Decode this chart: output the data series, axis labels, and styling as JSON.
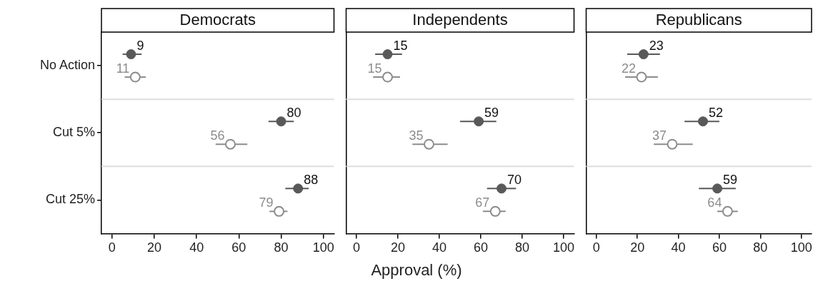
{
  "chart_data": [
    {
      "type": "scatter",
      "title": "Democrats",
      "orientation": "horizontal",
      "categories": [
        "No Action",
        "Cut 5%",
        "Cut 25%"
      ],
      "xlim": [
        -5,
        105
      ],
      "xticks": [
        0,
        20,
        40,
        60,
        80,
        100
      ],
      "grid": "y",
      "marker": "circle",
      "data_labels": true,
      "legend": false,
      "series": [
        {
          "color": "#595959",
          "values": [
            9,
            80,
            88
          ],
          "errors": [
            [
              5,
              14
            ],
            [
              74,
              86
            ],
            [
              82,
              93
            ]
          ]
        },
        {
          "color": "#8c8c8c",
          "values": [
            11,
            56,
            79
          ],
          "errors": [
            [
              6,
              16
            ],
            [
              49,
              64
            ],
            [
              74.5,
              83
            ]
          ]
        }
      ]
    },
    {
      "type": "scatter",
      "title": "Independents",
      "xlabel": "Approval (%)",
      "orientation": "horizontal",
      "xlim": [
        -5,
        105
      ],
      "xticks": [
        0,
        20,
        40,
        60,
        80,
        100
      ],
      "grid": "y",
      "marker": "circle",
      "data_labels": true,
      "legend": false,
      "tick_labels": "x",
      "series": [
        {
          "color": "#595959",
          "values": [
            15,
            59,
            70
          ],
          "errors": [
            [
              9,
              22
            ],
            [
              50,
              67.5
            ],
            [
              63,
              77
            ]
          ]
        },
        {
          "color": "#8c8c8c",
          "values": [
            15,
            35,
            67
          ],
          "errors": [
            [
              8,
              21
            ],
            [
              27,
              44
            ],
            [
              61,
              72
            ]
          ]
        }
      ]
    },
    {
      "type": "scatter",
      "title": "Republicans",
      "orientation": "horizontal",
      "xlim": [
        -5,
        105
      ],
      "xticks": [
        0,
        20,
        40,
        60,
        80,
        100
      ],
      "grid": "y",
      "marker": "circle",
      "data_labels": true,
      "legend": false,
      "tick_labels": "x",
      "series": [
        {
          "color": "#595959",
          "values": [
            23,
            52,
            59
          ],
          "errors": [
            [
              15,
              31
            ],
            [
              43,
              60
            ],
            [
              50,
              68
            ]
          ]
        },
        {
          "color": "#8c8c8c",
          "values": [
            22,
            37,
            64
          ],
          "errors": [
            [
              14,
              30
            ],
            [
              28,
              47
            ],
            [
              59,
              69
            ]
          ]
        }
      ]
    }
  ]
}
